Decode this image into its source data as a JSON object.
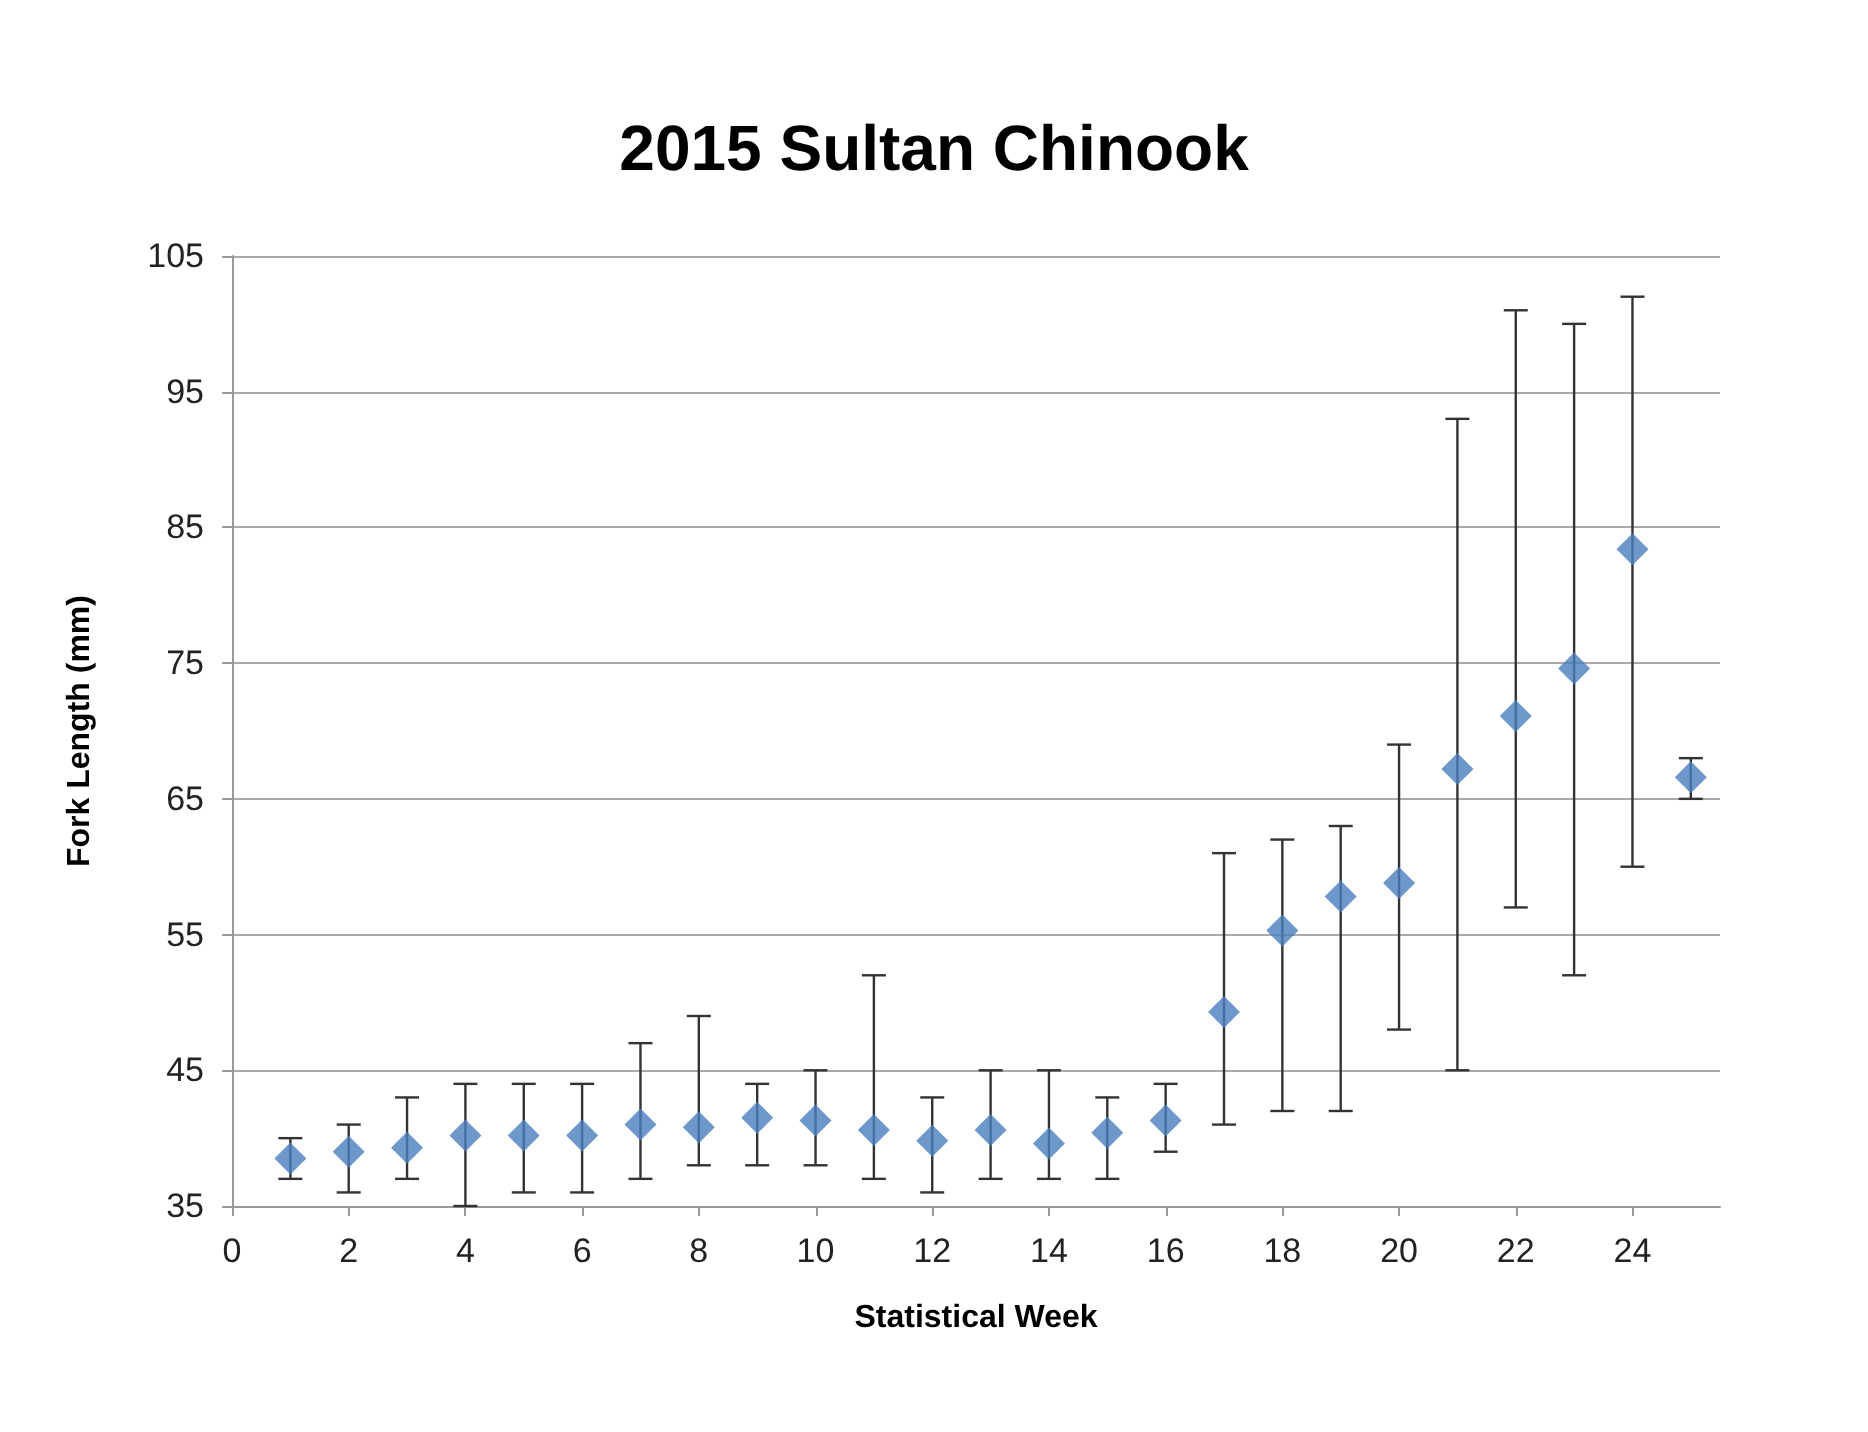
{
  "chart_data": {
    "type": "scatter",
    "title": "2015 Sultan Chinook",
    "xlabel": "Statistical Week",
    "ylabel": "Fork Length (mm)",
    "x": [
      1,
      2,
      3,
      4,
      5,
      6,
      7,
      8,
      9,
      10,
      11,
      12,
      13,
      14,
      15,
      16,
      17,
      18,
      19,
      20,
      21,
      22,
      23,
      24,
      25
    ],
    "values": [
      38.5,
      39,
      39.3,
      40.2,
      40.2,
      40.2,
      41,
      40.8,
      41.5,
      41.3,
      40.6,
      39.8,
      40.6,
      39.6,
      40.4,
      41.3,
      49.3,
      55.3,
      57.8,
      58.8,
      67.2,
      71.1,
      74.6,
      83.4,
      66.6
    ],
    "errors": [
      [
        37,
        40
      ],
      [
        36,
        41
      ],
      [
        37,
        43
      ],
      [
        35,
        44
      ],
      [
        36,
        44
      ],
      [
        36,
        44
      ],
      [
        37,
        47
      ],
      [
        38,
        49
      ],
      [
        38,
        44
      ],
      [
        38,
        45
      ],
      [
        37,
        52
      ],
      [
        36,
        43
      ],
      [
        37,
        45
      ],
      [
        37,
        45
      ],
      [
        37,
        43
      ],
      [
        39,
        44
      ],
      [
        41,
        61
      ],
      [
        42,
        62
      ],
      [
        42,
        63
      ],
      [
        48,
        69
      ],
      [
        45,
        93
      ],
      [
        57,
        101
      ],
      [
        52,
        100
      ],
      [
        60,
        102
      ],
      [
        65,
        68
      ]
    ],
    "color": "#4a7ebb",
    "marker": "diamond",
    "grid": "y",
    "xlim": [
      0,
      25.5
    ],
    "xticks": [
      0,
      2,
      4,
      6,
      8,
      10,
      12,
      14,
      16,
      18,
      20,
      22,
      24
    ],
    "ylim": [
      35,
      105
    ],
    "yticks": [
      35,
      45,
      55,
      65,
      75,
      85,
      95,
      105
    ]
  }
}
